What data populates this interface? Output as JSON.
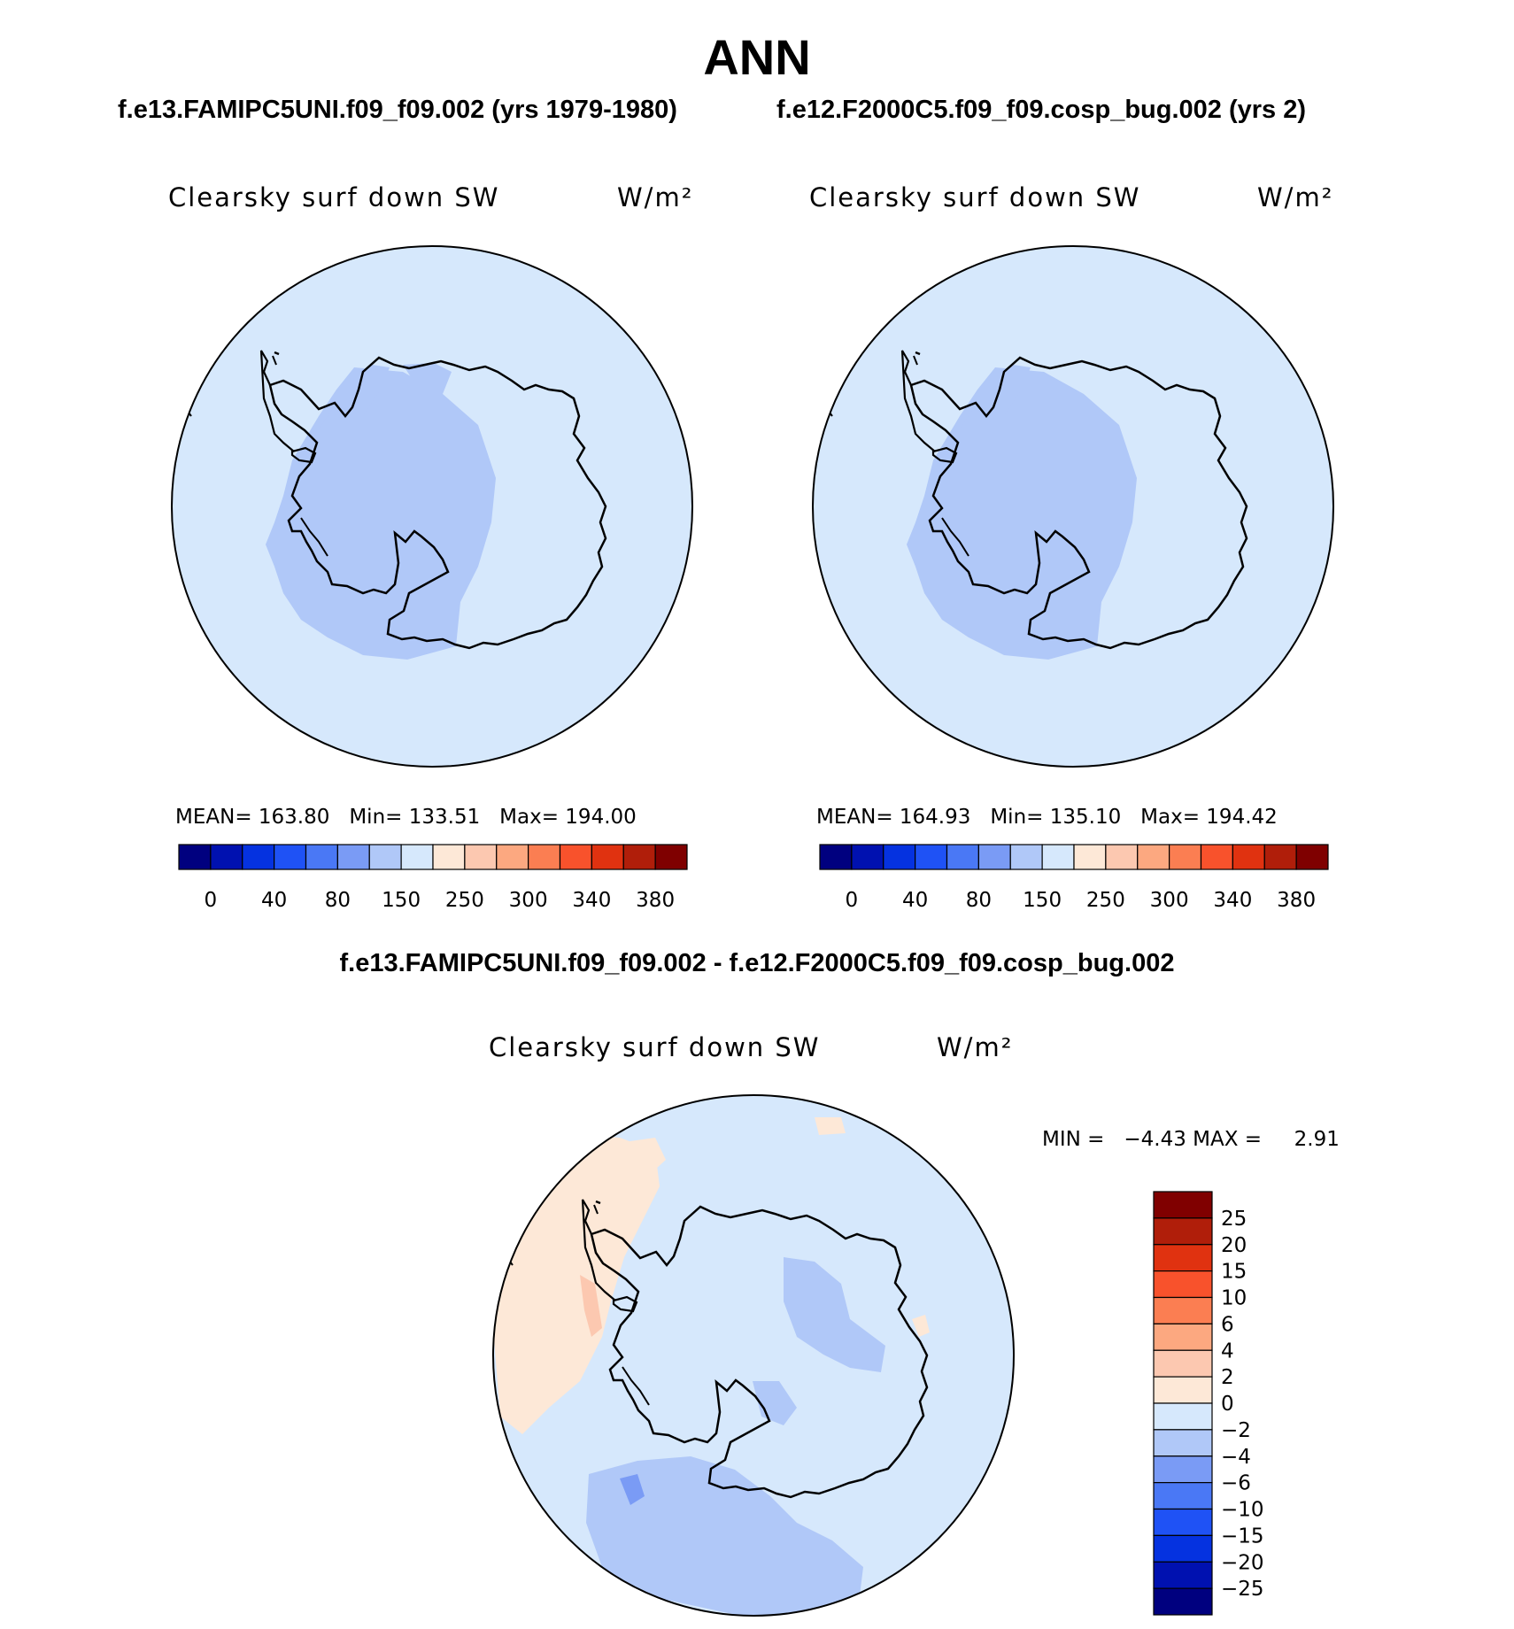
{
  "title": "ANN",
  "panels": [
    {
      "case": "f.e13.FAMIPC5UNI.f09_f09.002 (yrs 1979-1980)",
      "variable": "Clearsky surf down SW",
      "units": "W/m²",
      "stats": {
        "mean_label": "MEAN=",
        "mean": "163.80",
        "min_label": "Min=",
        "min": "133.51",
        "max_label": "Max=",
        "max": "194.00"
      }
    },
    {
      "case": "f.e12.F2000C5.f09_f09.cosp_bug.002 (yrs 2)",
      "variable": "Clearsky surf down SW",
      "units": "W/m²",
      "stats": {
        "mean_label": "MEAN=",
        "mean": "164.93",
        "min_label": "Min=",
        "min": "135.10",
        "max_label": "Max=",
        "max": "194.42"
      }
    }
  ],
  "colorbar_abs": {
    "colors": [
      "#00007f",
      "#0011b0",
      "#0532e0",
      "#1f52f5",
      "#4a78f5",
      "#7a9bf5",
      "#b0c8f8",
      "#d6e8fc",
      "#fde8d7",
      "#fcc8b0",
      "#fca880",
      "#fb7e52",
      "#f8522c",
      "#e03210",
      "#b01e0a",
      "#7f0000"
    ],
    "labels": [
      "0",
      "40",
      "80",
      "150",
      "250",
      "300",
      "340",
      "380"
    ]
  },
  "diff": {
    "title": "f.e13.FAMIPC5UNI.f09_f09.002 - f.e12.F2000C5.f09_f09.cosp_bug.002",
    "variable": "Clearsky surf down SW",
    "units": "W/m²",
    "min_label": "MIN =",
    "min": "−4.43",
    "max_label": "MAX =",
    "max": "2.91"
  },
  "colorbar_diff": {
    "colors": [
      "#800000",
      "#b01e0a",
      "#e03210",
      "#f8522c",
      "#fb7e52",
      "#fca880",
      "#fcc8b0",
      "#fde8d7",
      "#d6e8fc",
      "#b0c8f8",
      "#7a9bf5",
      "#4a78f5",
      "#1f52f5",
      "#0532e0",
      "#0011b0",
      "#00007f"
    ],
    "labels": [
      "25",
      "20",
      "15",
      "10",
      "6",
      "4",
      "2",
      "0",
      "−2",
      "−4",
      "−6",
      "−10",
      "−15",
      "−20",
      "−25"
    ]
  },
  "map_colors": {
    "light": "#d6e8fc",
    "mid": "#b0c8f8",
    "dark": "#7a9bf5",
    "warm": "#fde8d7",
    "warm2": "#fcc8b0"
  }
}
